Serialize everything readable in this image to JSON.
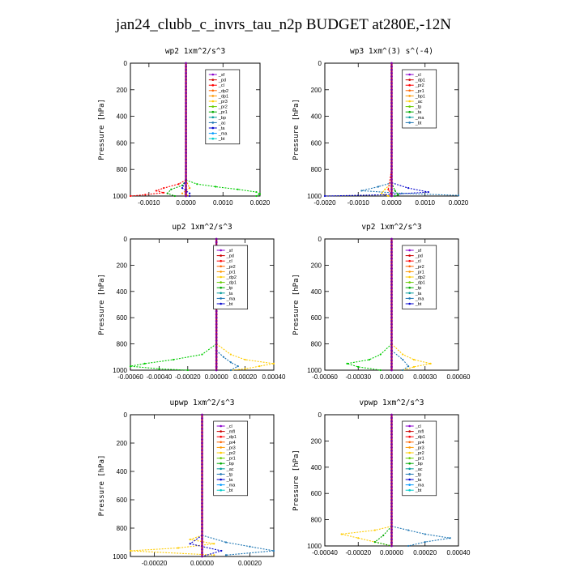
{
  "title": "jan24_clubb_c_invrs_tau_n2p  BUDGET at280E,-12N",
  "chart_data": [
    {
      "type": "line",
      "title": "wp2  1xm^2/s^3",
      "ylabel": "Pressure [hPa]",
      "ylim": [
        1000,
        0
      ],
      "xlim": [
        -0.0015,
        0.002
      ],
      "xticks": [
        "-0.0010",
        "0.0000",
        "0.0010",
        "0.0020"
      ],
      "xtick_values": [
        -0.001,
        0.0,
        0.001,
        0.002
      ],
      "yticks": [
        "0",
        "200",
        "400",
        "600",
        "800",
        "1000"
      ],
      "ytick_values": [
        0,
        200,
        400,
        600,
        800,
        1000
      ],
      "legend_pos": "top-right",
      "legend": [
        "_sf",
        "_pd",
        "_cl",
        "_dp2",
        "_dp1",
        "_pr3",
        "_pr2",
        "_pr1",
        "_bp",
        "_ac",
        "_ta",
        "_ma",
        "_bt"
      ],
      "series": [
        {
          "name": "_dp1",
          "color": "#ff0000",
          "pressure": [
            880,
            910,
            940,
            960,
            975,
            990,
            1000
          ],
          "values": [
            0.0,
            -0.0002,
            -0.0006,
            -0.0008,
            -0.0006,
            -0.0011,
            -0.0015
          ]
        },
        {
          "name": "_pr1",
          "color": "#00cc00",
          "pressure": [
            880,
            910,
            930,
            950,
            970,
            985,
            1000
          ],
          "values": [
            0.0,
            0.0003,
            0.0008,
            0.0014,
            0.0019,
            0.002,
            0.0019
          ]
        },
        {
          "name": "_bp",
          "color": "#00aa00",
          "pressure": [
            880,
            920,
            950,
            980,
            1000
          ],
          "values": [
            0.0,
            -0.0001,
            -0.0004,
            -0.0005,
            -0.0003
          ]
        },
        {
          "name": "_pr3",
          "color": "#ff9900",
          "pressure": [
            880,
            940,
            980,
            1000
          ],
          "values": [
            0.0,
            0.0001,
            -0.0001,
            0.0001
          ]
        },
        {
          "name": "_ta",
          "color": "#0000cc",
          "pressure": [
            880,
            940,
            980,
            1000
          ],
          "values": [
            0.0,
            -0.0001,
            0.0001,
            0.0001
          ]
        },
        {
          "name": "_sf",
          "color": "#8800cc",
          "pressure": [
            0,
            200,
            400,
            600,
            800,
            900,
            1000
          ],
          "values": [
            0,
            0,
            0,
            0,
            0,
            0.0,
            0.0
          ]
        }
      ]
    },
    {
      "type": "line",
      "title": "wp3  1xm^(3) s^(-4)",
      "ylabel": "Pressure [hPa]",
      "ylim": [
        1000,
        0
      ],
      "xlim": [
        -0.002,
        0.002
      ],
      "xticks": [
        "-0.0020",
        "-0.0010",
        "0.0000",
        "0.0010",
        "0.0020"
      ],
      "xtick_values": [
        -0.002,
        -0.001,
        0.0,
        0.001,
        0.002
      ],
      "yticks": [
        "0",
        "200",
        "400",
        "600",
        "800",
        "1000"
      ],
      "ytick_values": [
        0,
        200,
        400,
        600,
        800,
        1000
      ],
      "legend_pos": "top-right",
      "legend": [
        "_cl",
        "_dp1",
        "_pr2",
        "_pr1",
        "_bp1",
        "_ac",
        "_tp",
        "_ta",
        "_ma",
        "_bt"
      ],
      "series": [
        {
          "name": "_ta",
          "color": "#0000cc",
          "pressure": [
            900,
            940,
            970,
            990,
            1000
          ],
          "values": [
            0.0,
            0.0005,
            0.0011,
            -0.0002,
            -0.002
          ]
        },
        {
          "name": "_tp",
          "color": "#1f77b4",
          "pressure": [
            900,
            930,
            960,
            980,
            995
          ],
          "values": [
            0.0,
            -0.0004,
            -0.0009,
            0.0003,
            0.002
          ]
        },
        {
          "name": "_pr1",
          "color": "#ffcc00",
          "pressure": [
            900,
            950,
            980,
            1000
          ],
          "values": [
            0.0,
            -0.0002,
            -0.0003,
            -0.0001
          ]
        },
        {
          "name": "_bp1",
          "color": "#00aa00",
          "pressure": [
            900,
            960,
            990,
            1000
          ],
          "values": [
            0.0,
            0.0001,
            0.0002,
            0.0001
          ]
        },
        {
          "name": "_dp1",
          "color": "#ff0000",
          "pressure": [
            0,
            400,
            800,
            950,
            1000
          ],
          "values": [
            0,
            0,
            0,
            -0.0001,
            0.0
          ]
        }
      ]
    },
    {
      "type": "line",
      "title": "up2  1xm^2/s^3",
      "ylabel": "Pressure [hPa]",
      "ylim": [
        1000,
        0
      ],
      "xlim": [
        -0.0006,
        0.0004
      ],
      "xticks": [
        "-0.00060",
        "-0.00040",
        "-0.00020",
        "0.00000",
        "0.00020",
        "0.00040"
      ],
      "xtick_values": [
        -0.0006,
        -0.0004,
        -0.0002,
        0.0,
        0.0002,
        0.0004
      ],
      "yticks": [
        "0",
        "200",
        "400",
        "600",
        "800",
        "1000"
      ],
      "ytick_values": [
        0,
        200,
        400,
        600,
        800,
        1000
      ],
      "legend_pos": "top-right",
      "legend": [
        "_sf",
        "_pd",
        "_cl",
        "_pr2",
        "_pr1",
        "_dp2",
        "_dp1",
        "_tp",
        "_ta",
        "_ma",
        "_bt"
      ],
      "series": [
        {
          "name": "_dp1",
          "color": "#00cc00",
          "pressure": [
            800,
            880,
            920,
            950,
            970,
            990,
            1000
          ],
          "values": [
            0.0,
            -0.0001,
            -0.0003,
            -0.0005,
            -0.0006,
            -0.0004,
            -0.0002
          ]
        },
        {
          "name": "_pr1",
          "color": "#ffcc00",
          "pressure": [
            800,
            880,
            920,
            950,
            970,
            990,
            1000
          ],
          "values": [
            0.0,
            0.0001,
            0.0002,
            0.0004,
            0.0003,
            0.0002,
            0.0001
          ]
        },
        {
          "name": "_tp",
          "color": "#1f77b4",
          "pressure": [
            850,
            900,
            940,
            970,
            1000
          ],
          "values": [
            0.0,
            5e-05,
            0.0001,
            0.00015,
            0.0001
          ]
        },
        {
          "name": "_cl",
          "color": "#cc0000",
          "pressure": [
            0,
            200,
            400,
            600,
            800,
            900,
            1000
          ],
          "values": [
            0,
            0,
            0,
            0,
            0,
            0.0,
            0.0
          ]
        }
      ]
    },
    {
      "type": "line",
      "title": "vp2  1xm^2/s^3",
      "ylabel": "Pressure [hPa]",
      "ylim": [
        1000,
        0
      ],
      "xlim": [
        -0.0006,
        0.0006
      ],
      "xticks": [
        "-0.00060",
        "-0.00030",
        "0.00000",
        "0.00030",
        "0.00060"
      ],
      "xtick_values": [
        -0.0006,
        -0.0003,
        0.0,
        0.0003,
        0.0006
      ],
      "yticks": [
        "0",
        "200",
        "400",
        "600",
        "800",
        "1000"
      ],
      "ytick_values": [
        0,
        200,
        400,
        600,
        800,
        1000
      ],
      "legend_pos": "top-right",
      "legend": [
        "_sf",
        "_pd",
        "_cl",
        "_pr2",
        "_pr1",
        "_dp2",
        "_dp1",
        "_tp",
        "_ta",
        "_ma",
        "_bt"
      ],
      "series": [
        {
          "name": "_dp1",
          "color": "#00cc00",
          "pressure": [
            800,
            880,
            920,
            950,
            975,
            1000
          ],
          "values": [
            0.0,
            -0.0001,
            -0.0002,
            -0.0004,
            -0.0003,
            -0.0001
          ]
        },
        {
          "name": "_pr1",
          "color": "#ffcc00",
          "pressure": [
            800,
            880,
            920,
            950,
            975,
            1000
          ],
          "values": [
            0.0,
            0.0001,
            0.0002,
            0.00035,
            0.0002,
            0.0001
          ]
        },
        {
          "name": "_tp",
          "color": "#1f77b4",
          "pressure": [
            850,
            920,
            970,
            1000
          ],
          "values": [
            0.0,
            0.0001,
            0.00015,
            0.0001
          ]
        },
        {
          "name": "_cl",
          "color": "#cc0000",
          "pressure": [
            0,
            200,
            400,
            600,
            800,
            900,
            1000
          ],
          "values": [
            0,
            0,
            0,
            0,
            0,
            0.0,
            0.0
          ]
        }
      ]
    },
    {
      "type": "line",
      "title": "upwp  1xm^2/s^3",
      "ylabel": "Pressure [hPa]",
      "ylim": [
        1000,
        0
      ],
      "xlim": [
        -0.0003,
        0.0003
      ],
      "xticks": [
        "-0.00020",
        "0.00000",
        "0.00020"
      ],
      "xtick_values": [
        -0.0002,
        0.0,
        0.0002
      ],
      "yticks": [
        "0",
        "200",
        "400",
        "600",
        "800",
        "1000"
      ],
      "ytick_values": [
        0,
        200,
        400,
        600,
        800,
        1000
      ],
      "legend_pos": "top-right",
      "legend": [
        "_cl",
        "_mfl",
        "_dp1",
        "_pr4",
        "_pr3",
        "_pr2",
        "_pr1",
        "_bp",
        "_ac",
        "_tp",
        "_ta",
        "_ma",
        "_bt"
      ],
      "series": [
        {
          "name": "_pr1",
          "color": "#ffcc00",
          "pressure": [
            850,
            880,
            910,
            940,
            960,
            990
          ],
          "values": [
            0.0,
            -5e-05,
            5e-05,
            -0.0001,
            -0.0003,
            5e-05
          ]
        },
        {
          "name": "_tp",
          "color": "#1f77b4",
          "pressure": [
            850,
            900,
            930,
            960,
            990
          ],
          "values": [
            0.0,
            0.0001,
            0.0002,
            0.0003,
            0.0001
          ]
        },
        {
          "name": "_ta",
          "color": "#0000cc",
          "pressure": [
            850,
            910,
            960,
            1000
          ],
          "values": [
            0.0,
            -5e-05,
            8e-05,
            0.0
          ]
        },
        {
          "name": "_cl",
          "color": "#8800cc",
          "pressure": [
            0,
            200,
            400,
            600,
            800,
            900,
            1000
          ],
          "values": [
            0,
            0,
            0,
            0,
            0,
            0.0,
            0.0
          ]
        }
      ]
    },
    {
      "type": "line",
      "title": "vpwp  1xm^2/s^3",
      "ylabel": "Pressure [hPa]",
      "ylim": [
        1000,
        0
      ],
      "xlim": [
        -0.0004,
        0.0004
      ],
      "xticks": [
        "-0.00040",
        "-0.00020",
        "0.00000",
        "0.00020",
        "0.00040"
      ],
      "xtick_values": [
        -0.0004,
        -0.0002,
        0.0,
        0.0002,
        0.0004
      ],
      "yticks": [
        "0",
        "200",
        "400",
        "600",
        "800",
        "1000"
      ],
      "ytick_values": [
        0,
        200,
        400,
        600,
        800,
        1000
      ],
      "legend_pos": "top-right",
      "legend": [
        "_cl",
        "_mfl",
        "_dp1",
        "_pr4",
        "_pr3",
        "_pr2",
        "_pr1",
        "_bp",
        "_ac",
        "_tp",
        "_ta",
        "_ma",
        "_bt"
      ],
      "series": [
        {
          "name": "_pr1",
          "color": "#ffcc00",
          "pressure": [
            850,
            880,
            910,
            940,
            970,
            1000
          ],
          "values": [
            0.0,
            -0.0001,
            -0.0003,
            -0.0002,
            -0.0001,
            0.0
          ]
        },
        {
          "name": "_tp",
          "color": "#1f77b4",
          "pressure": [
            850,
            880,
            910,
            940,
            970,
            1000
          ],
          "values": [
            0.0,
            0.0001,
            0.0002,
            0.00035,
            0.0002,
            0.0001
          ]
        },
        {
          "name": "_ac",
          "color": "#00aa00",
          "pressure": [
            850,
            920,
            970,
            1000
          ],
          "values": [
            0.0,
            -5e-05,
            -0.0001,
            0.0
          ]
        },
        {
          "name": "_cl",
          "color": "#8800cc",
          "pressure": [
            0,
            200,
            400,
            600,
            800,
            900,
            1000
          ],
          "values": [
            0,
            0,
            0,
            0,
            0,
            0.0,
            0.0
          ]
        }
      ]
    }
  ],
  "legend_colors": [
    "#8800cc",
    "#cc0000",
    "#ff0000",
    "#ff6600",
    "#ff9900",
    "#ffcc00",
    "#66cc00",
    "#00aa00",
    "#009999",
    "#1f77b4",
    "#0000cc",
    "#0099ff",
    "#00cccc"
  ]
}
